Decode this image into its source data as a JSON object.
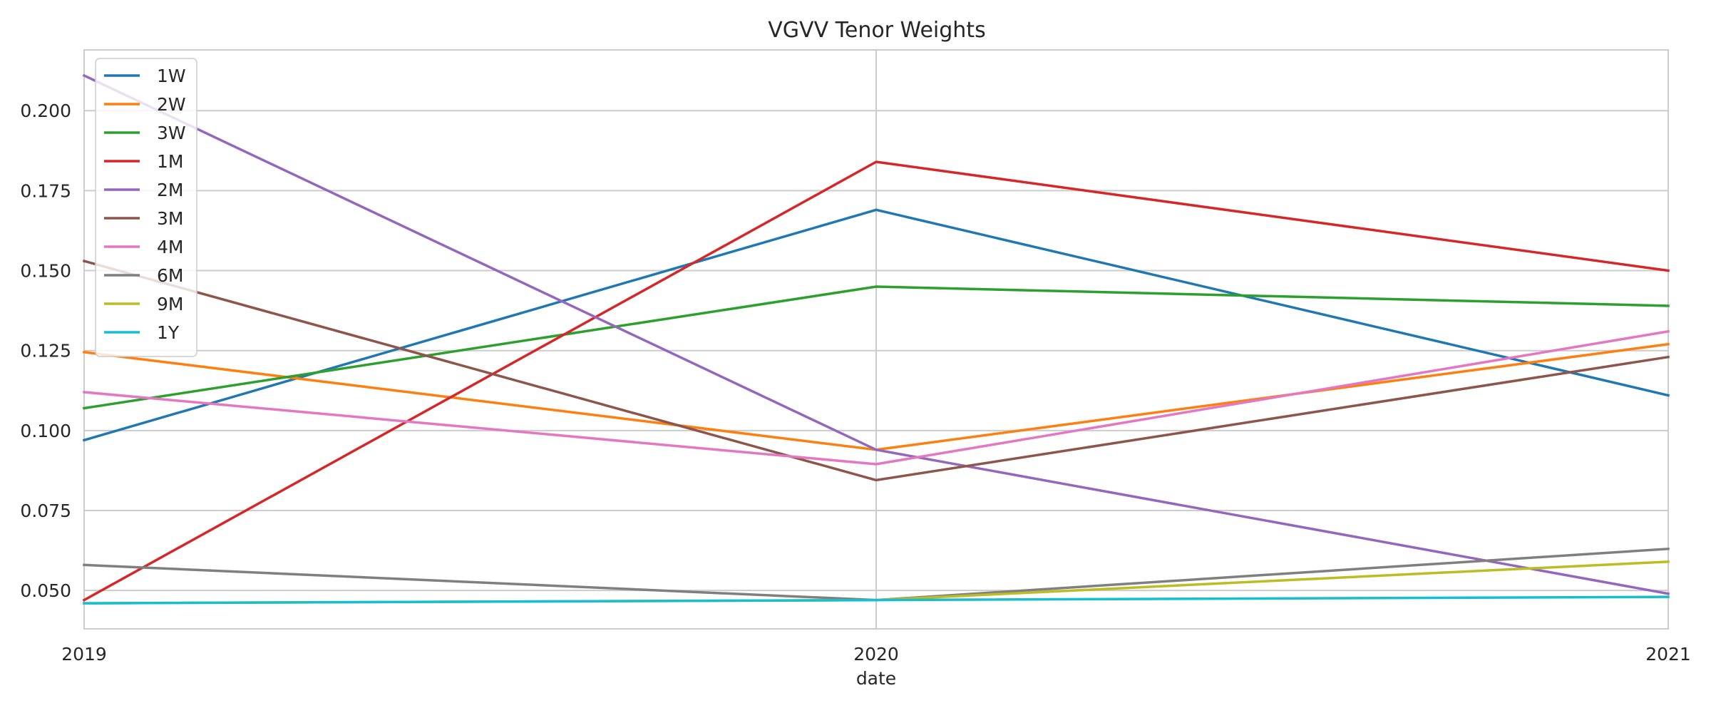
{
  "chart_data": {
    "type": "line",
    "title": "VGVV Tenor Weights",
    "xlabel": "date",
    "ylabel": "",
    "x": [
      "2019",
      "2020",
      "2021"
    ],
    "ylim": [
      0.038,
      0.219
    ],
    "yticks": [
      "0.050",
      "0.075",
      "0.100",
      "0.125",
      "0.150",
      "0.175",
      "0.200"
    ],
    "grid": true,
    "legend_position": "top-left",
    "series": [
      {
        "name": "1W",
        "color": "#1f77b4",
        "values": [
          0.097,
          0.169,
          0.111
        ]
      },
      {
        "name": "2W",
        "color": "#ff7f0e",
        "values": [
          0.1245,
          0.094,
          0.127
        ]
      },
      {
        "name": "3W",
        "color": "#2ca02c",
        "values": [
          0.107,
          0.145,
          0.139
        ]
      },
      {
        "name": "1M",
        "color": "#d62728",
        "values": [
          0.047,
          0.184,
          0.15
        ]
      },
      {
        "name": "2M",
        "color": "#9467bd",
        "values": [
          0.211,
          0.094,
          0.049
        ]
      },
      {
        "name": "3M",
        "color": "#8c564b",
        "values": [
          0.153,
          0.0845,
          0.123
        ]
      },
      {
        "name": "4M",
        "color": "#e377c2",
        "values": [
          0.112,
          0.0895,
          0.131
        ]
      },
      {
        "name": "6M",
        "color": "#7f7f7f",
        "values": [
          0.058,
          0.047,
          0.063
        ]
      },
      {
        "name": "9M",
        "color": "#bcbd22",
        "values": [
          0.046,
          0.047,
          0.059
        ]
      },
      {
        "name": "1Y",
        "color": "#17becf",
        "values": [
          0.046,
          0.047,
          0.048
        ]
      }
    ]
  }
}
